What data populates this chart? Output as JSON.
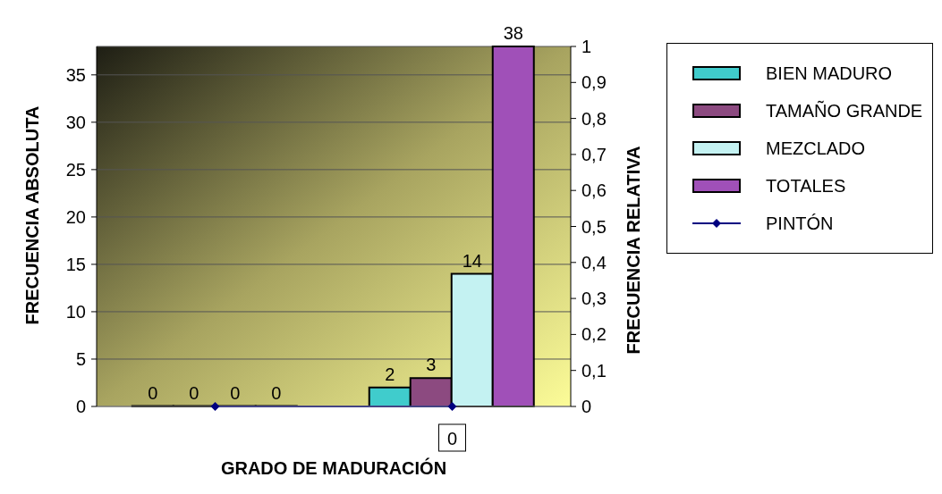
{
  "chart_data": {
    "type": "bar",
    "xlabel": "GRADO DE MADURACIÓN",
    "ylabel": "FRECUENCIA ABSOLUTA",
    "y2label": "FRECUENCIA RELATIVA",
    "categories": [
      null,
      null
    ],
    "series": [
      {
        "name": "BIEN MADURO",
        "color": "#40cccc",
        "values": [
          0,
          2
        ]
      },
      {
        "name": "TAMAÑO GRANDE",
        "color": "#8c4a80",
        "values": [
          0,
          3
        ]
      },
      {
        "name": "MEZCLADO",
        "color": "#c4f2f2",
        "values": [
          0,
          14
        ]
      },
      {
        "name": "TOTALES",
        "color": "#a050b8",
        "values": [
          0,
          38
        ]
      },
      {
        "name": "PINTÓN",
        "type": "line",
        "axis": "y2",
        "color": "#000080",
        "values": [
          0,
          0
        ],
        "value_labels": [
          null,
          "0"
        ]
      }
    ],
    "ylim": [
      0,
      38
    ],
    "yticks": [
      0,
      5,
      10,
      15,
      20,
      25,
      30,
      35
    ],
    "y2lim": [
      0,
      1
    ],
    "y2ticks": [
      0,
      {
        "value": 0.1,
        "label": "0,1"
      },
      {
        "value": 0.2,
        "label": "0,2"
      },
      {
        "value": 0.3,
        "label": "0,3"
      },
      {
        "value": 0.4,
        "label": "0,4"
      },
      {
        "value": 0.5,
        "label": "0,5"
      },
      {
        "value": 0.6,
        "label": "0,6"
      },
      {
        "value": 0.7,
        "label": "0,7"
      },
      {
        "value": 0.8,
        "label": "0,8"
      },
      {
        "value": 0.9,
        "label": "0,9"
      },
      1
    ],
    "grid": "y",
    "legend": "right",
    "marker": "diamond",
    "data_labels": true
  }
}
